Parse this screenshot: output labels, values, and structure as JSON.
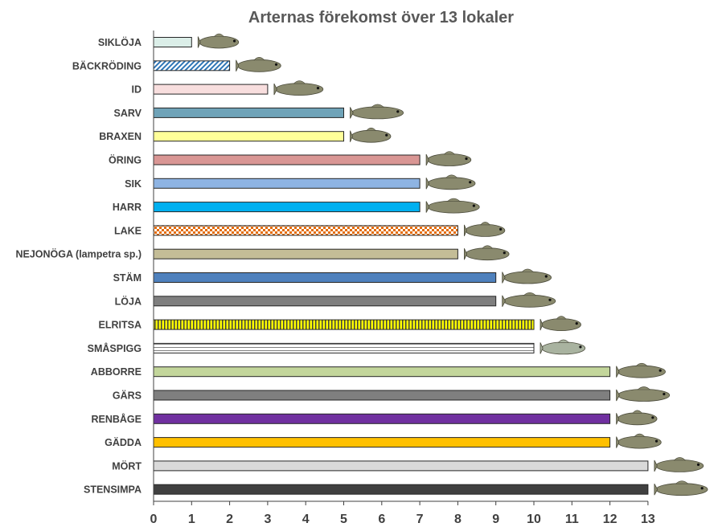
{
  "chart_data": {
    "type": "bar",
    "orientation": "horizontal",
    "title": "Arternas förekomst över 13 lokaler",
    "xlabel": "",
    "ylabel": "",
    "xlim": [
      0,
      13
    ],
    "xticks": [
      0,
      1,
      2,
      3,
      4,
      5,
      6,
      7,
      8,
      9,
      10,
      11,
      12,
      13
    ],
    "grid": false,
    "categories": [
      "SIKLÖJA",
      "BÄCKRÖDING",
      "ID",
      "SARV",
      "BRAXEN",
      "ÖRING",
      "SIK",
      "HARR",
      "LAKE",
      "NEJONÖGA (lampetra sp.)",
      "STÄM",
      "LÖJA",
      "ELRITSA",
      "SMÅSPIGG",
      "ABBORRE",
      "GÄRS",
      "RENBÅGE",
      "GÄDDA",
      "MÖRT",
      "STENSIMPA"
    ],
    "values": [
      1,
      2,
      3,
      5,
      5,
      7,
      7,
      7,
      8,
      8,
      9,
      9,
      10,
      10,
      12,
      12,
      12,
      12,
      13,
      13
    ],
    "colors": [
      "#dbeee8",
      "#2e75b6",
      "#f8dede",
      "#6fa3b8",
      "#ffff99",
      "#d99694",
      "#8eb4e3",
      "#00b0f0",
      "#e46c0a",
      "#c4bd97",
      "#4f81bd",
      "#7f7f7f",
      "#ffff00",
      "#ffffff",
      "#c3d69b",
      "#7f7f7f",
      "#7030a0",
      "#ffc000",
      "#d9d9d9",
      "#404040"
    ],
    "patterns": [
      "solid",
      "diagonal",
      "solid",
      "solid",
      "solid",
      "solid",
      "solid",
      "solid",
      "checker",
      "solid",
      "solid",
      "solid",
      "vertical",
      "horizontal",
      "solid",
      "solid",
      "solid",
      "solid",
      "solid",
      "solid"
    ],
    "fish_icons": [
      "vendace-icon",
      "brook-trout-icon",
      "ide-icon",
      "rudd-icon",
      "bream-icon",
      "brown-trout-icon",
      "whitefish-icon",
      "grayling-icon",
      "burbot-icon",
      "lamprey-icon",
      "dace-icon",
      "bleak-icon",
      "minnow-icon",
      "stickleback-icon",
      "perch-icon",
      "ruffe-icon",
      "rainbow-trout-icon",
      "pike-icon",
      "roach-icon",
      "sculpin-icon"
    ]
  }
}
